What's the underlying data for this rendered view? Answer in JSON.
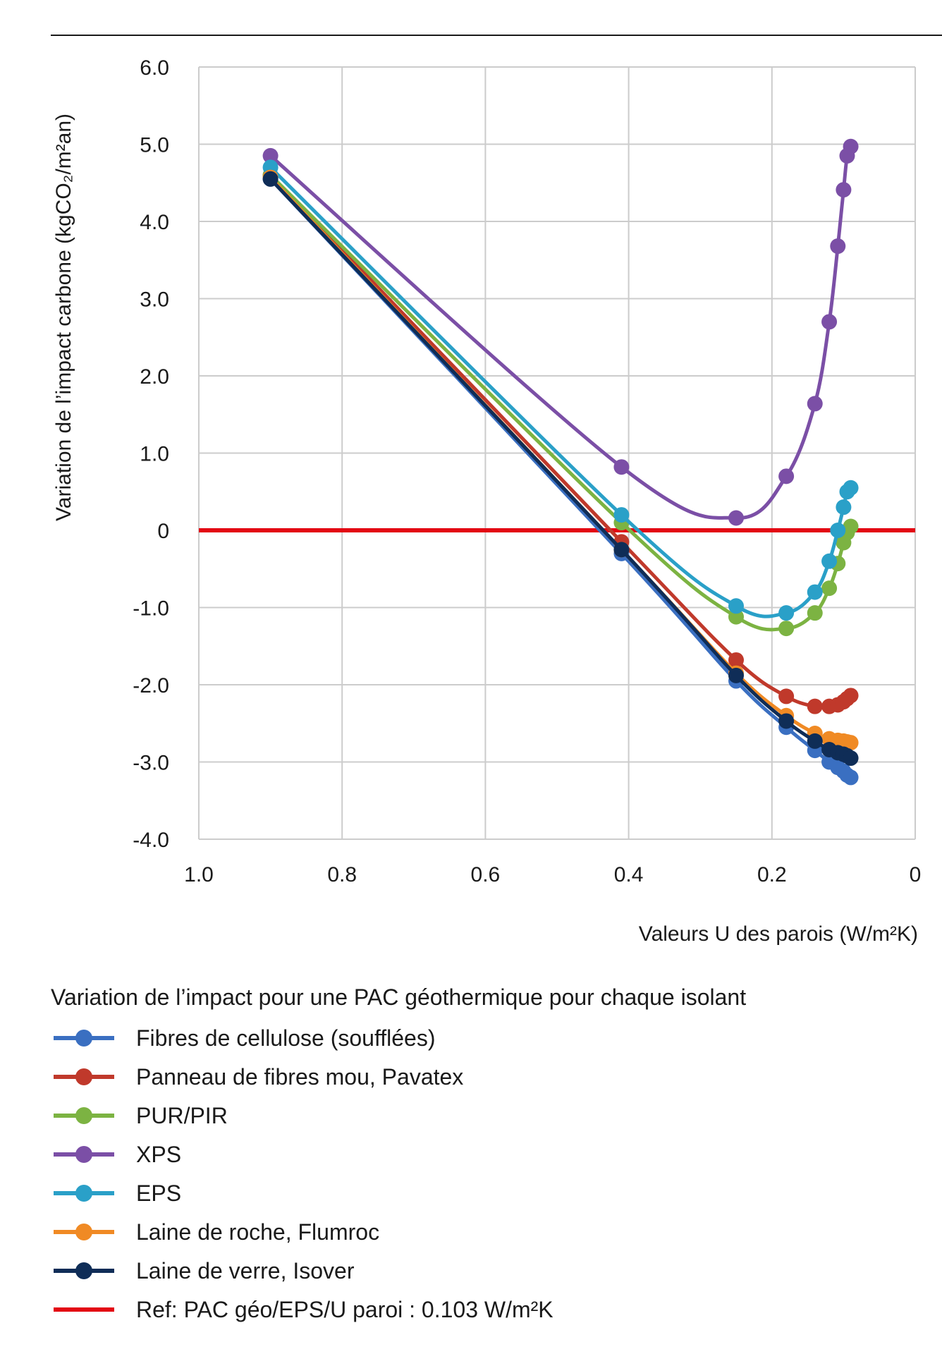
{
  "chart_data": {
    "type": "line",
    "xlabel": "Valeurs U des parois (W/m²K)",
    "ylabel": "Variation de l’impact carbone (kgCO₂/m²an)",
    "xlim": [
      1.0,
      0
    ],
    "x_reversed": true,
    "ylim": [
      -4.0,
      6.0
    ],
    "x_ticks": [
      "1.0",
      "0.8",
      "0.6",
      "0.4",
      "0.2",
      "0"
    ],
    "x_tick_values": [
      1.0,
      0.8,
      0.6,
      0.4,
      0.2,
      0
    ],
    "y_ticks": [
      "6.0",
      "5.0",
      "4.0",
      "3.0",
      "2.0",
      "1.0",
      "0",
      "-1.0",
      "-2.0",
      "-3.0",
      "-4.0"
    ],
    "y_tick_values": [
      6,
      5,
      4,
      3,
      2,
      1,
      0,
      -1,
      -2,
      -3,
      -4
    ],
    "grid": true,
    "legend_title": "Variation de l’impact pour une PAC géothermique pour chaque isolant",
    "legend_placement": "bottom",
    "reference_line": {
      "name": "Ref: PAC géo/EPS/U paroi : 0.103 W/m²K",
      "y": 0,
      "color": "#e30613"
    },
    "series": [
      {
        "name": "Fibres de cellulose (soufflées)",
        "color": "#3a6fc1",
        "x": [
          0.9,
          0.41,
          0.25,
          0.18,
          0.14,
          0.12,
          0.108,
          0.1,
          0.095,
          0.09
        ],
        "y": [
          4.55,
          -0.3,
          -1.95,
          -2.55,
          -2.85,
          -3.0,
          -3.07,
          -3.12,
          -3.17,
          -3.2
        ]
      },
      {
        "name": "Panneau de fibres mou, Pavatex",
        "color": "#c0392b",
        "x": [
          0.9,
          0.41,
          0.25,
          0.18,
          0.14,
          0.12,
          0.108,
          0.1,
          0.095,
          0.09
        ],
        "y": [
          4.6,
          -0.15,
          -1.68,
          -2.15,
          -2.28,
          -2.28,
          -2.26,
          -2.22,
          -2.18,
          -2.14
        ]
      },
      {
        "name": "PUR/PIR",
        "color": "#7cb342",
        "x": [
          0.9,
          0.41,
          0.25,
          0.18,
          0.14,
          0.12,
          0.108,
          0.1,
          0.095,
          0.09
        ],
        "y": [
          4.6,
          0.1,
          -1.12,
          -1.27,
          -1.07,
          -0.75,
          -0.43,
          -0.16,
          -0.03,
          0.05
        ]
      },
      {
        "name": "XPS",
        "color": "#7b4fa6",
        "x": [
          0.9,
          0.41,
          0.25,
          0.18,
          0.14,
          0.12,
          0.108,
          0.1,
          0.095,
          0.09
        ],
        "y": [
          4.85,
          0.82,
          0.16,
          0.7,
          1.64,
          2.7,
          3.68,
          4.41,
          4.85,
          4.97
        ]
      },
      {
        "name": "EPS",
        "color": "#2aa0c8",
        "x": [
          0.9,
          0.41,
          0.25,
          0.18,
          0.14,
          0.12,
          0.108,
          0.1,
          0.095,
          0.09
        ],
        "y": [
          4.7,
          0.2,
          -0.98,
          -1.07,
          -0.8,
          -0.4,
          0.0,
          0.3,
          0.5,
          0.55
        ]
      },
      {
        "name": "Laine de roche, Flumroc",
        "color": "#f08a24",
        "x": [
          0.9,
          0.41,
          0.25,
          0.18,
          0.14,
          0.12,
          0.108,
          0.1,
          0.095,
          0.09
        ],
        "y": [
          4.57,
          -0.25,
          -1.85,
          -2.4,
          -2.63,
          -2.7,
          -2.72,
          -2.73,
          -2.74,
          -2.75
        ]
      },
      {
        "name": "Laine de verre, Isover",
        "color": "#0f2d57",
        "x": [
          0.9,
          0.41,
          0.25,
          0.18,
          0.14,
          0.12,
          0.108,
          0.1,
          0.095,
          0.09
        ],
        "y": [
          4.55,
          -0.25,
          -1.88,
          -2.47,
          -2.73,
          -2.84,
          -2.88,
          -2.9,
          -2.92,
          -2.95
        ]
      }
    ]
  }
}
